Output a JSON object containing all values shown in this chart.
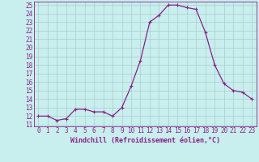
{
  "x": [
    0,
    1,
    2,
    3,
    4,
    5,
    6,
    7,
    8,
    9,
    10,
    11,
    12,
    13,
    14,
    15,
    16,
    17,
    18,
    19,
    20,
    21,
    22,
    23
  ],
  "y": [
    12,
    12,
    11.5,
    11.7,
    12.8,
    12.8,
    12.5,
    12.5,
    12,
    13,
    15.5,
    18.5,
    23,
    23.8,
    25,
    25,
    24.7,
    24.5,
    21.8,
    18,
    15.8,
    15,
    14.8,
    14
  ],
  "line_color": "#882288",
  "marker": "+",
  "marker_size": 3,
  "marker_lw": 0.8,
  "line_width": 0.9,
  "bg_color": "#c8eeee",
  "grid_color": "#aacccc",
  "xlabel": "Windchill (Refroidissement éolien,°C)",
  "xlabel_color": "#882288",
  "tick_color": "#882288",
  "spine_color": "#882288",
  "ylim": [
    10.8,
    25.4
  ],
  "xlim": [
    -0.5,
    23.5
  ],
  "yticks": [
    11,
    12,
    13,
    14,
    15,
    16,
    17,
    18,
    19,
    20,
    21,
    22,
    23,
    24,
    25
  ],
  "xticks": [
    0,
    1,
    2,
    3,
    4,
    5,
    6,
    7,
    8,
    9,
    10,
    11,
    12,
    13,
    14,
    15,
    16,
    17,
    18,
    19,
    20,
    21,
    22,
    23
  ],
  "tick_fontsize": 5.5,
  "xlabel_fontsize": 6.0
}
